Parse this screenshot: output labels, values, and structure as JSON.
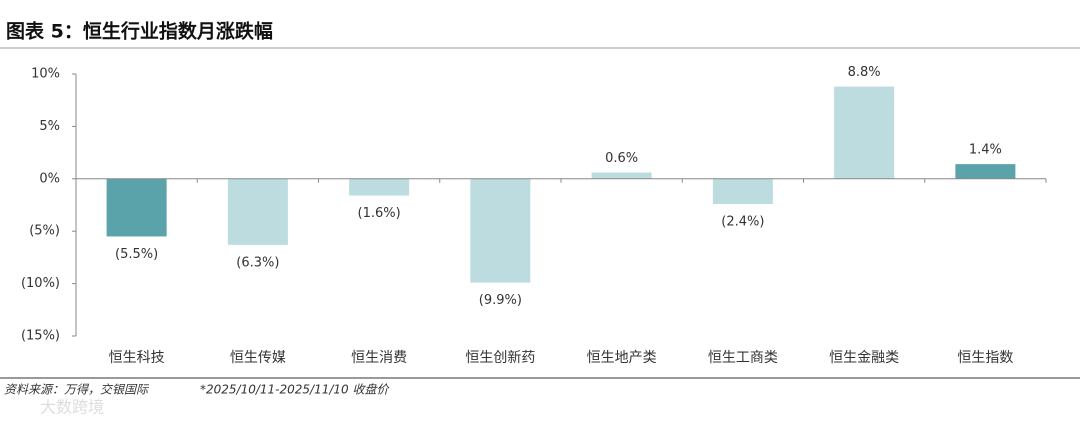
{
  "title": "图表 5：恒生行业指数月涨跌幅",
  "chart_data": {
    "type": "bar",
    "categories": [
      "恒生科技",
      "恒生传媒",
      "恒生消费",
      "恒生创新药",
      "恒生地产类",
      "恒生工商类",
      "恒生金融类",
      "恒生指数"
    ],
    "values": [
      -5.5,
      -6.3,
      -1.6,
      -9.9,
      0.6,
      -2.4,
      8.8,
      1.4
    ],
    "value_labels": [
      "(5.5%)",
      "(6.3%)",
      "(1.6%)",
      "(9.9%)",
      "0.6%",
      "(2.4%)",
      "8.8%",
      "1.4%"
    ],
    "colors": [
      "#5ba3aa",
      "#bcdcdf",
      "#bcdcdf",
      "#bcdcdf",
      "#bcdcdf",
      "#bcdcdf",
      "#bcdcdf",
      "#5ba3aa"
    ],
    "ylim": [
      -15,
      10
    ],
    "yticks": [
      {
        "value": 10,
        "label": "10%"
      },
      {
        "value": 5,
        "label": "5%"
      },
      {
        "value": 0,
        "label": "0%"
      },
      {
        "value": -5,
        "label": "(5%)"
      },
      {
        "value": -10,
        "label": "(10%)"
      },
      {
        "value": -15,
        "label": "(15%)"
      }
    ],
    "grid": false
  },
  "source": "资料来源：万得，交银国际",
  "note": "*2025/10/11-2025/11/10 收盘价",
  "watermark": "大数跨境"
}
